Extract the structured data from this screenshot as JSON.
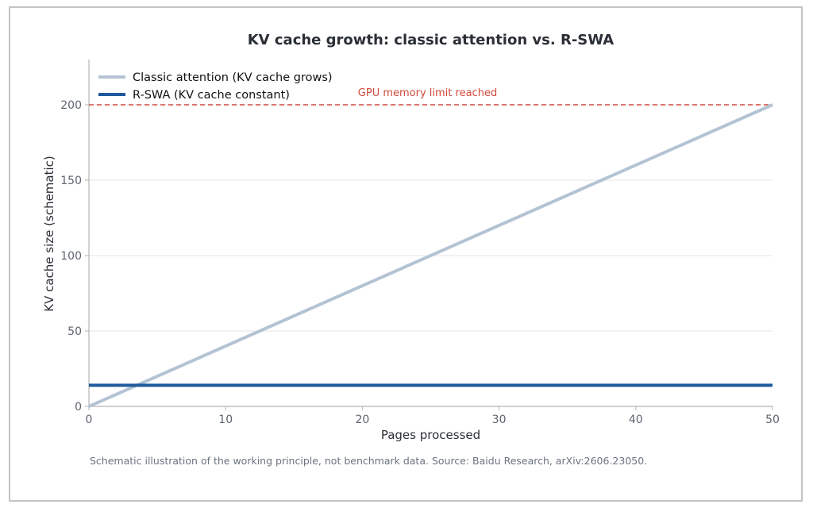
{
  "chart_data": {
    "type": "line",
    "title": "KV cache growth: classic attention vs. R-SWA",
    "xlabel": "Pages processed",
    "ylabel": "KV cache size (schematic)",
    "xlim": [
      0,
      50
    ],
    "ylim": [
      0,
      230
    ],
    "x_ticks": [
      0,
      10,
      20,
      30,
      40,
      50
    ],
    "y_ticks": [
      0,
      50,
      100,
      150,
      200
    ],
    "grid": "horizontal",
    "legend_position": "top-left",
    "series": [
      {
        "name": "Classic attention (KV cache grows)",
        "x": [
          0,
          50
        ],
        "y": [
          0,
          200
        ],
        "color": "#b4c3d4"
      },
      {
        "name": "R-SWA (KV cache constant)",
        "x": [
          0,
          50
        ],
        "y": [
          14,
          14
        ],
        "color": "#1f5a9e"
      }
    ],
    "reference_line": {
      "y": 200,
      "label": "GPU memory limit reached",
      "color": "#d24a3c",
      "style": "dashed"
    }
  },
  "caption": "Schematic illustration of the working principle, not benchmark data. Source: Baidu Research, arXiv:2606.23050."
}
